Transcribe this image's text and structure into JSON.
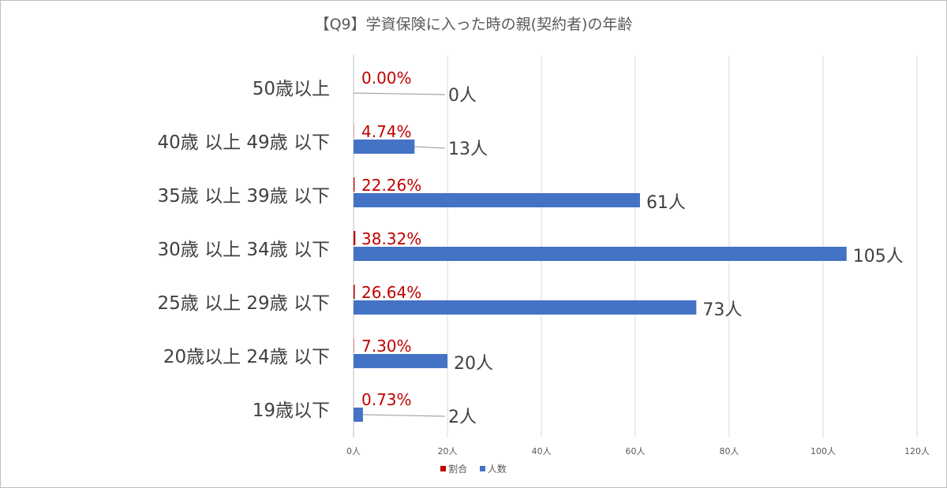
{
  "chart_data": {
    "type": "bar",
    "orientation": "horizontal",
    "title": "【Q9】学資保険に入った時の親(契約者)の年齢",
    "categories": [
      "50歳以上",
      "40歳 以上 49歳 以下",
      "35歳 以上 39歳 以下",
      "30歳 以上 34歳 以下",
      "25歳 以上 29歳 以下",
      "20歳以上 24歳 以下",
      "19歳以下"
    ],
    "series": [
      {
        "name": "割合",
        "values": [
          0.0,
          4.74,
          22.26,
          38.32,
          26.64,
          7.3,
          0.73
        ],
        "labels": [
          "0.00%",
          "4.74%",
          "22.26%",
          "38.32%",
          "26.64%",
          "7.30%",
          "0.73%"
        ],
        "color": "#c00000"
      },
      {
        "name": "人数",
        "values": [
          0,
          13,
          61,
          105,
          73,
          20,
          2
        ],
        "labels": [
          "0人",
          "13人",
          "61人",
          "105人",
          "73人",
          "20人",
          "2人"
        ],
        "color": "#4472c4"
      }
    ],
    "xlim": [
      0,
      120
    ],
    "xticks": [
      "0人",
      "20人",
      "40人",
      "60人",
      "80人",
      "100人",
      "120人"
    ],
    "grid": true,
    "legend_position": "bottom"
  }
}
